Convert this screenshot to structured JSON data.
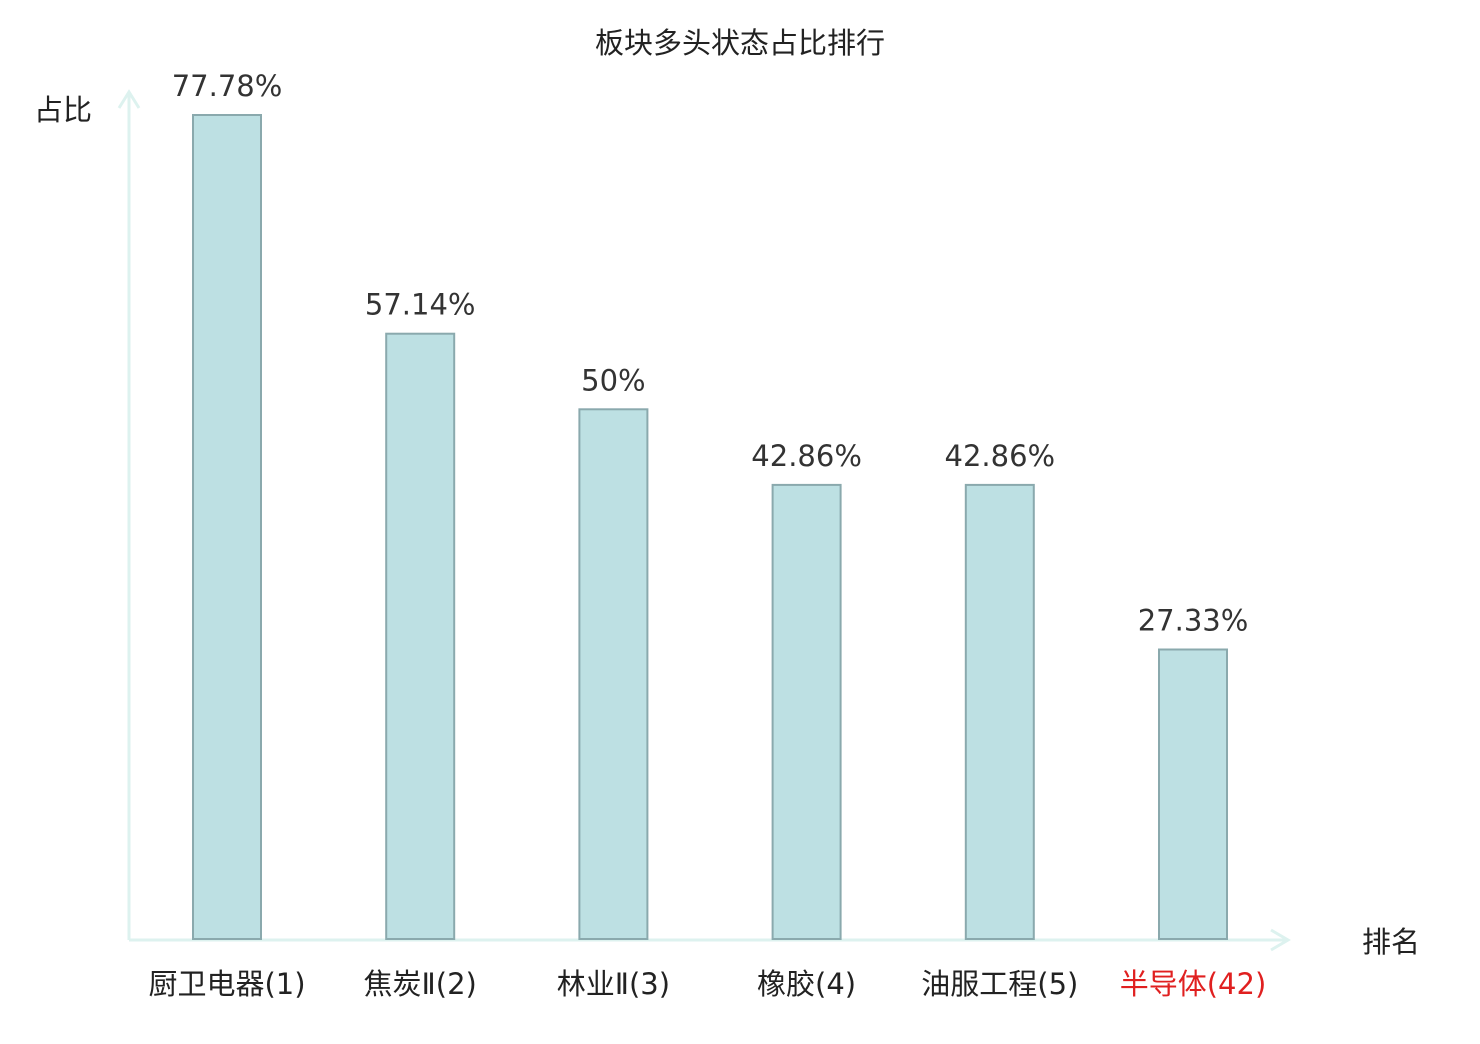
{
  "chart_data": {
    "type": "bar",
    "title": "板块多头状态占比排行",
    "ylabel": "占比",
    "xlabel": "排名",
    "categories": [
      "厨卫电器",
      "焦炭Ⅱ",
      "林业Ⅱ",
      "橡胶",
      "油服工程",
      "半导体"
    ],
    "ranks": [
      "(1)",
      "(2)",
      "(3)",
      "(4)",
      "(5)",
      "(42)"
    ],
    "values": [
      77.78,
      57.14,
      50,
      42.86,
      42.86,
      27.33
    ],
    "value_labels": [
      "77.78%",
      "57.14%",
      "50%",
      "42.86%",
      "42.86%",
      "27.33%"
    ],
    "highlight_index": 5,
    "ylim": [
      0,
      77.78
    ],
    "grid": false
  },
  "colors": {
    "bar_fill": "#bde0e3",
    "bar_stroke": "#8aa9ad",
    "axis": "#ddf2ef",
    "category_text": "#222222",
    "highlight_text": "#e02020"
  }
}
